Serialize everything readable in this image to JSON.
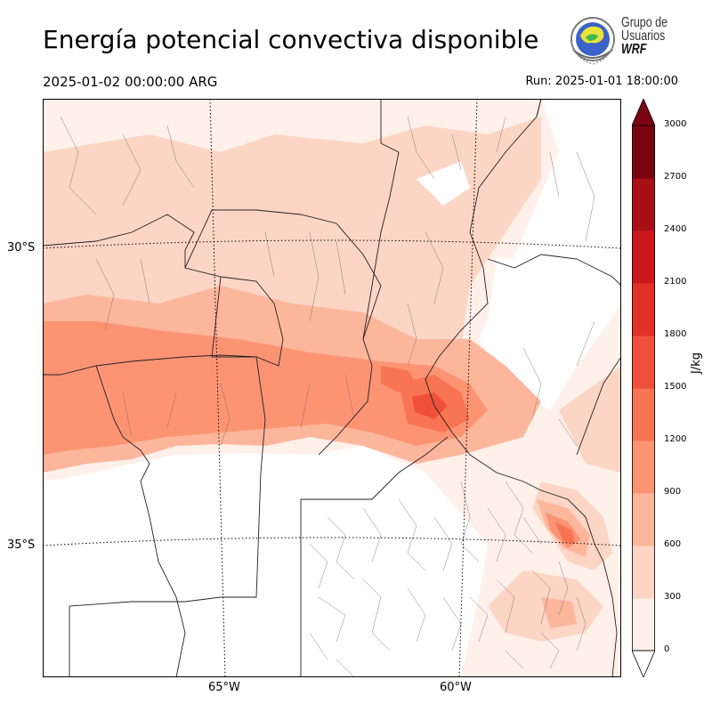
{
  "header": {
    "title": "Energía potencial convectiva disponible",
    "valid_time": "2025-01-02 00:00:00 ARG",
    "run_time": "Run: 2025-01-01 18:00:00"
  },
  "logo": {
    "line1": "Grupo de",
    "line2": "Usuarios",
    "line3": "WRF"
  },
  "map": {
    "lat_labels": [
      "30°S",
      "35°S"
    ],
    "lon_labels": [
      "65°W",
      "60°W"
    ],
    "field": "CAPE"
  },
  "colorbar": {
    "unit": "J/kg",
    "ticks": [
      "0",
      "300",
      "600",
      "900",
      "1200",
      "1500",
      "1800",
      "2100",
      "2400",
      "2700",
      "3000"
    ],
    "colors": [
      "#fff0ea",
      "#fdd5c4",
      "#fcb69b",
      "#fc9474",
      "#f97453",
      "#f0503a",
      "#e03229",
      "#cb181d",
      "#a91016",
      "#7a0510"
    ],
    "extend": "both"
  }
}
